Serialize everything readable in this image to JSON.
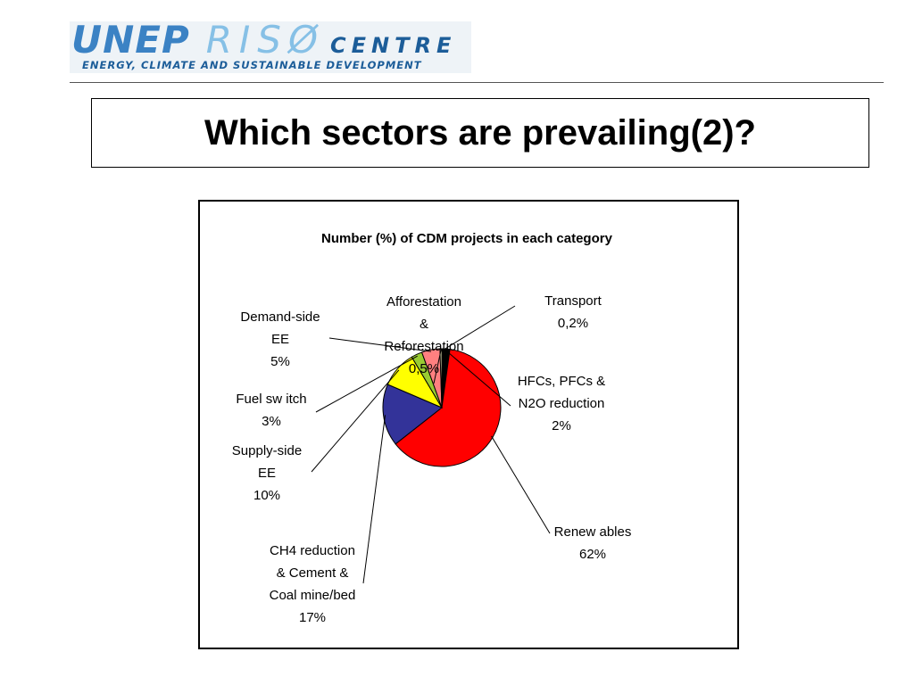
{
  "header": {
    "logo_unep": "UNEP",
    "logo_riso": "RISØ",
    "logo_centre": "CENTRE",
    "logo_tagline": "ENERGY, CLIMATE AND SUSTAINABLE DEVELOPMENT"
  },
  "slide": {
    "title": "Which sectors are prevailing(2)?"
  },
  "chart_data": {
    "type": "pie",
    "title": "Number (%) of CDM projects in each category",
    "start_angle_deg": 0,
    "direction": "clockwise",
    "slices": [
      {
        "label": "Transport",
        "value": 0.2,
        "display": "0,2%",
        "color": "#cccccc"
      },
      {
        "label": "HFCs, PFCs & N2O reduction",
        "value": 2,
        "display": "2%",
        "color": "#000000"
      },
      {
        "label": "Renewables",
        "value": 62,
        "display": "62%",
        "color": "#ff0000"
      },
      {
        "label": "CH4 reduction & Cement & Coal mine/bed",
        "value": 17,
        "display": "17%",
        "color": "#333399"
      },
      {
        "label": "Supply-side EE",
        "value": 10,
        "display": "10%",
        "color": "#ffff00"
      },
      {
        "label": "Fuel switch",
        "value": 3,
        "display": "3%",
        "color": "#99cc33"
      },
      {
        "label": "Demand-side EE",
        "value": 5,
        "display": "5%",
        "color": "#ff8080"
      },
      {
        "label": "Afforestation & Reforestation",
        "value": 0.5,
        "display": "0,5%",
        "color": "#ffffcc"
      }
    ],
    "label_lines": [
      [
        "Transport",
        "0,2%"
      ],
      [
        "HFCs, PFCs &",
        "N2O reduction",
        "2%"
      ],
      [
        "Renew ables",
        "62%"
      ],
      [
        "CH4 reduction",
        "& Cement &",
        "Coal mine/bed",
        "17%"
      ],
      [
        "Supply-side",
        "EE",
        "10%"
      ],
      [
        "Fuel sw itch",
        "3%"
      ],
      [
        "Demand-side",
        "EE",
        "5%"
      ],
      [
        "Afforestation",
        "&",
        "Reforestation",
        "0,5%"
      ]
    ]
  }
}
